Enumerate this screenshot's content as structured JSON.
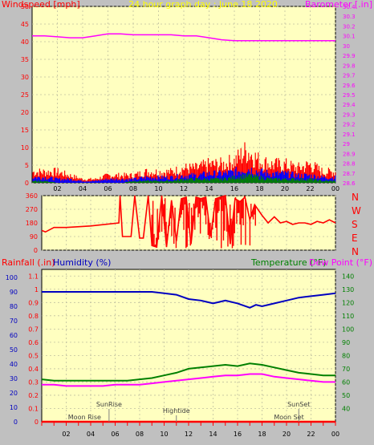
{
  "header": {
    "windspeed_label": "Windspeed [mph]",
    "title": "24 hour graph day : June 18 2020",
    "barometer_label": "Barometer [.in]"
  },
  "compass": {
    "n_top": "N",
    "w": "W",
    "s": "S",
    "e": "E",
    "n_bottom": "N"
  },
  "bottom_header": {
    "rainfall_label": "Rainfall (.in)",
    "humidity_label": "Humidity (%)",
    "temperature_label": "Temperature (°F)",
    "dewpoint_label": "Dew Point (°F)"
  },
  "events": {
    "sunrise": "SunRise",
    "moonrise": "Moon Rise",
    "hightide": "Hightide",
    "sunset": "SunSet",
    "moonset": "Moon Set"
  },
  "colors": {
    "plot_bg": "#ffffc0",
    "frame_bg": "#c0c0c0",
    "barometer": "#ff00ff",
    "wind_gust": "#ff0000",
    "wind_avg": "#0000ff",
    "wind_low": "#008000",
    "direction": "#ff0000",
    "humidity": "#0000c0",
    "temperature": "#008000",
    "dewpoint": "#ff00ff",
    "rainfall": "#ff0000",
    "title": "#ffff00"
  },
  "chart_data": [
    {
      "type": "line",
      "title": "24 hour graph day : June 18 2020",
      "x_ticks": [
        "02",
        "04",
        "06",
        "08",
        "10",
        "12",
        "14",
        "16",
        "18",
        "20",
        "22",
        "00"
      ],
      "y_left": {
        "label": "Windspeed [mph]",
        "ticks": [
          "0",
          "5",
          "10",
          "15",
          "20",
          "25",
          "30",
          "35",
          "40",
          "45",
          "50"
        ],
        "ylim": [
          0,
          50
        ]
      },
      "y_right": {
        "label": "Barometer [.in]",
        "ticks": [
          "28.6",
          "28.7",
          "28.8",
          "28.9",
          "29",
          "29.1",
          "29.2",
          "29.3",
          "29.4",
          "29.5",
          "29.6",
          "29.7",
          "29.8",
          "29.9",
          "30",
          "30.1",
          "30.2",
          "30.3",
          "30.4"
        ],
        "ylim": [
          28.6,
          30.4
        ]
      },
      "series": [
        {
          "name": "Barometer",
          "axis": "right",
          "x": [
            0,
            1,
            2,
            3,
            4,
            5,
            6,
            7,
            8,
            9,
            10,
            11,
            12,
            13,
            14,
            15,
            16,
            17,
            18,
            19,
            20,
            21,
            22,
            23,
            24
          ],
          "values": [
            30.1,
            30.1,
            30.09,
            30.08,
            30.08,
            30.1,
            30.12,
            30.12,
            30.11,
            30.11,
            30.11,
            30.11,
            30.1,
            30.1,
            30.08,
            30.06,
            30.05,
            30.05,
            30.05,
            30.05,
            30.05,
            30.05,
            30.05,
            30.05,
            30.05
          ]
        },
        {
          "name": "Wind gust",
          "axis": "left",
          "x": [
            0,
            1,
            2,
            3,
            4,
            5,
            6,
            7,
            8,
            9,
            10,
            11,
            12,
            13,
            14,
            15,
            16,
            17,
            18,
            19,
            20,
            21,
            22,
            23,
            24
          ],
          "values": [
            3,
            3,
            3,
            2,
            1,
            1,
            2,
            2,
            2,
            3,
            3,
            3,
            4,
            4,
            5,
            5,
            6,
            9,
            6,
            5,
            5,
            4,
            5,
            3,
            3
          ]
        },
        {
          "name": "Wind avg",
          "axis": "left",
          "x": [
            0,
            1,
            2,
            3,
            4,
            5,
            6,
            7,
            8,
            9,
            10,
            11,
            12,
            13,
            14,
            15,
            16,
            17,
            18,
            19,
            20,
            21,
            22,
            23,
            24
          ],
          "values": [
            1.5,
            1.5,
            1,
            1,
            0.5,
            0.5,
            1,
            1,
            1,
            1.5,
            1.5,
            1.5,
            2,
            2,
            2.5,
            2.5,
            3,
            4,
            3,
            2.5,
            2.5,
            2,
            2,
            1.5,
            1.5
          ]
        },
        {
          "name": "Wind low",
          "axis": "left",
          "x": [
            0,
            1,
            2,
            3,
            4,
            5,
            6,
            7,
            8,
            9,
            10,
            11,
            12,
            13,
            14,
            15,
            16,
            17,
            18,
            19,
            20,
            21,
            22,
            23,
            24
          ],
          "values": [
            0.5,
            0.5,
            0,
            0,
            0,
            0,
            0,
            0,
            0.5,
            0.5,
            0.5,
            0.5,
            1,
            1,
            1,
            1,
            1.5,
            2,
            1.5,
            1,
            1,
            1,
            1,
            0.5,
            0.5
          ]
        }
      ]
    },
    {
      "type": "line",
      "y_left": {
        "ticks": [
          "0",
          "90",
          "180",
          "270",
          "360"
        ],
        "ylim": [
          0,
          360
        ]
      },
      "series": [
        {
          "name": "Wind direction",
          "x": [
            0,
            0.3,
            1,
            2,
            4,
            6.3,
            6.4,
            6.6,
            7.3,
            7.6,
            8,
            8.3,
            8.7,
            9,
            9.4,
            9.8,
            10.2,
            10.6,
            11,
            11.4,
            11.8,
            12.2,
            12.6,
            13,
            13.4,
            13.8,
            14.2,
            14.6,
            15,
            15.4,
            15.8,
            16.2,
            16.6,
            17,
            17.4,
            18,
            18.5,
            19,
            19.5,
            20,
            20.5,
            21,
            21.5,
            22,
            22.5,
            23,
            23.5,
            24
          ],
          "values": [
            130,
            120,
            150,
            150,
            160,
            180,
            360,
            90,
            90,
            360,
            80,
            80,
            360,
            30,
            20,
            360,
            20,
            330,
            60,
            340,
            350,
            40,
            350,
            340,
            350,
            90,
            340,
            350,
            360,
            40,
            340,
            320,
            350,
            200,
            300,
            230,
            180,
            220,
            180,
            190,
            170,
            180,
            180,
            170,
            190,
            180,
            200,
            180
          ]
        }
      ]
    },
    {
      "type": "line",
      "x_ticks": [
        "02",
        "04",
        "06",
        "08",
        "10",
        "12",
        "14",
        "16",
        "18",
        "20",
        "22",
        "00"
      ],
      "y_left": {
        "label": "Rainfall (.in)",
        "ticks": [
          "0",
          "0.1",
          "0.2",
          "0.3",
          "0.4",
          "0.5",
          "0.6",
          "0.7",
          "0.8",
          "0.9",
          "1",
          "1.1"
        ],
        "ylim": [
          0,
          1.15
        ]
      },
      "y_humidity": {
        "label": "Humidity (%)",
        "ticks": [
          "0",
          "10",
          "20",
          "30",
          "40",
          "50",
          "60",
          "70",
          "80",
          "90",
          "100"
        ],
        "ylim": [
          0,
          100
        ]
      },
      "y_right": {
        "label": "Temperature (°F)",
        "ticks": [
          "40",
          "50",
          "60",
          "70",
          "80",
          "90",
          "100",
          "110",
          "120",
          "130",
          "140"
        ],
        "ylim": [
          30,
          145
        ]
      },
      "series": [
        {
          "name": "Humidity",
          "axis": "humidity",
          "x": [
            0,
            1,
            2,
            3,
            4,
            5,
            6,
            7,
            8,
            9,
            10,
            11,
            12,
            13,
            14,
            14.5,
            15,
            16,
            17,
            17.5,
            18,
            19,
            20,
            21,
            22,
            23,
            24
          ],
          "values": [
            90,
            90,
            90,
            90,
            90,
            90,
            90,
            90,
            90,
            90,
            89,
            88,
            85,
            84,
            82,
            83,
            84,
            82,
            79,
            81,
            80,
            82,
            84,
            86,
            87,
            88,
            89
          ]
        },
        {
          "name": "Temperature",
          "axis": "right",
          "x": [
            0,
            1,
            2,
            3,
            4,
            5,
            6,
            7,
            8,
            9,
            10,
            11,
            12,
            13,
            14,
            15,
            16,
            17,
            18,
            19,
            20,
            21,
            22,
            23,
            24
          ],
          "values": [
            62,
            61,
            61,
            61,
            61,
            61,
            61,
            61,
            62,
            63,
            65,
            67,
            70,
            71,
            72,
            73,
            72,
            74,
            73,
            71,
            69,
            67,
            66,
            65,
            65
          ]
        },
        {
          "name": "Dew Point",
          "axis": "right",
          "x": [
            0,
            1,
            2,
            3,
            4,
            5,
            6,
            7,
            8,
            9,
            10,
            11,
            12,
            13,
            14,
            15,
            16,
            17,
            18,
            19,
            20,
            21,
            22,
            23,
            24
          ],
          "values": [
            58,
            58,
            57,
            57,
            57,
            57,
            58,
            58,
            58,
            59,
            60,
            61,
            62,
            63,
            64,
            65,
            65,
            66,
            66,
            64,
            63,
            62,
            61,
            60,
            60
          ]
        },
        {
          "name": "Rainfall",
          "axis": "left",
          "x": [
            0,
            24
          ],
          "values": [
            0,
            0
          ]
        }
      ],
      "events": [
        {
          "label": "SunRise",
          "x": 5.5
        },
        {
          "label": "Moon Rise",
          "x": 3.5
        },
        {
          "label": "Hightide",
          "x": 11.0
        },
        {
          "label": "SunSet",
          "x": 21.0
        },
        {
          "label": "Moon Set",
          "x": 20.2
        }
      ]
    }
  ]
}
